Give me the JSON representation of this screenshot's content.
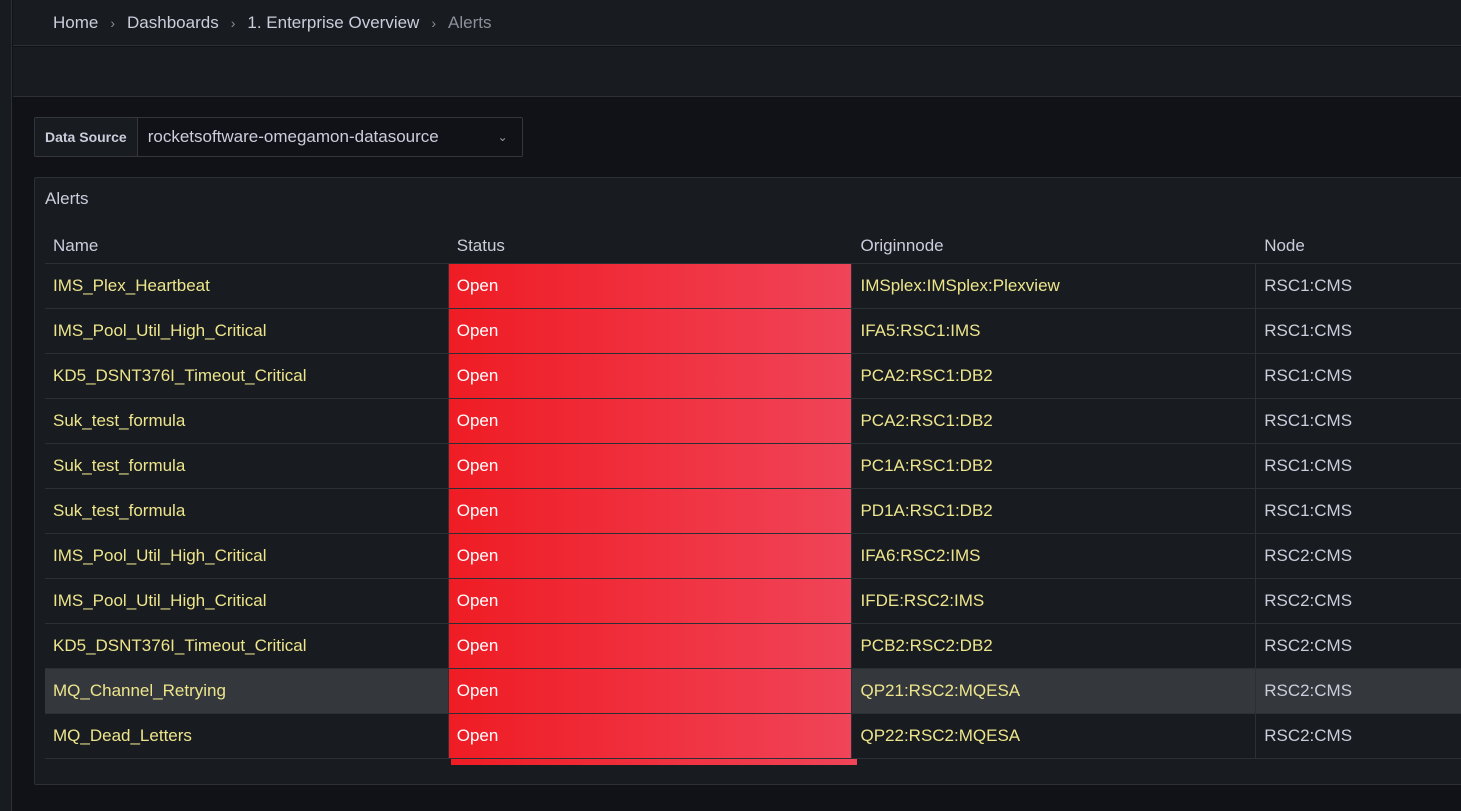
{
  "breadcrumb": [
    "Home",
    "Dashboards",
    "1. Enterprise Overview",
    "Alerts"
  ],
  "datasource": {
    "label": "Data Source",
    "value": "rocketsoftware-omegamon-datasource"
  },
  "panel": {
    "title": "Alerts",
    "columns": [
      "Name",
      "Status",
      "Originnode",
      "Node"
    ],
    "status_color": "#ef1c24",
    "rows": [
      [
        "IMS_Plex_Heartbeat",
        "Open",
        "IMSplex:IMSplex:Plexview",
        "RSC1:CMS"
      ],
      [
        "IMS_Pool_Util_High_Critical",
        "Open",
        "IFA5:RSC1:IMS",
        "RSC1:CMS"
      ],
      [
        "KD5_DSNT376I_Timeout_Critical",
        "Open",
        "PCA2:RSC1:DB2",
        "RSC1:CMS"
      ],
      [
        "Suk_test_formula",
        "Open",
        "PCA2:RSC1:DB2",
        "RSC1:CMS"
      ],
      [
        "Suk_test_formula",
        "Open",
        "PC1A:RSC1:DB2",
        "RSC1:CMS"
      ],
      [
        "Suk_test_formula",
        "Open",
        "PD1A:RSC1:DB2",
        "RSC1:CMS"
      ],
      [
        "IMS_Pool_Util_High_Critical",
        "Open",
        "IFA6:RSC2:IMS",
        "RSC2:CMS"
      ],
      [
        "IMS_Pool_Util_High_Critical",
        "Open",
        "IFDE:RSC2:IMS",
        "RSC2:CMS"
      ],
      [
        "KD5_DSNT376I_Timeout_Critical",
        "Open",
        "PCB2:RSC2:DB2",
        "RSC2:CMS"
      ],
      [
        "MQ_Channel_Retrying",
        "Open",
        "QP21:RSC2:MQESA",
        "RSC2:CMS"
      ],
      [
        "MQ_Dead_Letters",
        "Open",
        "QP22:RSC2:MQESA",
        "RSC2:CMS"
      ]
    ]
  }
}
